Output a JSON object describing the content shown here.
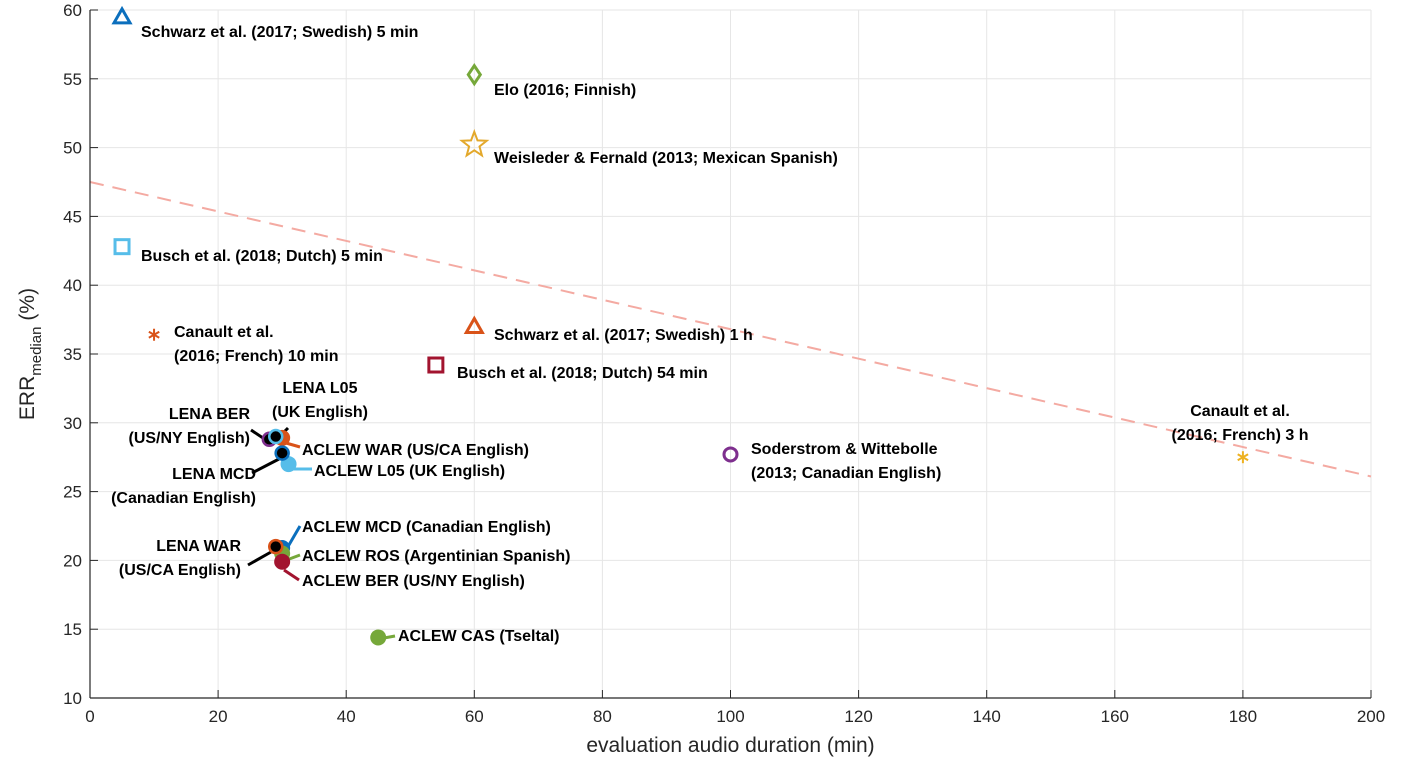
{
  "chart_data": {
    "type": "scatter",
    "xlabel": "evaluation audio duration (min)",
    "ylabel_main": "ERR",
    "ylabel_sub": "median",
    "ylabel_unit": "(%)",
    "xlim": [
      0,
      200
    ],
    "ylim": [
      10,
      60
    ],
    "xticks": [
      0,
      20,
      40,
      60,
      80,
      100,
      120,
      140,
      160,
      180,
      200
    ],
    "yticks": [
      10,
      15,
      20,
      25,
      30,
      35,
      40,
      45,
      50,
      55,
      60
    ],
    "grid": true,
    "trend_line": {
      "style": "dashed",
      "color": "#f4aaa2",
      "x": [
        0,
        200
      ],
      "y": [
        47.5,
        26.1
      ]
    },
    "points": [
      {
        "x": 5,
        "y": 59.5,
        "marker": "triangle",
        "color": "#0b6fbd",
        "label": [
          "Schwarz et al. (2017; Swedish) 5 min"
        ]
      },
      {
        "x": 60,
        "y": 55.3,
        "marker": "diamond",
        "color": "#76a83a",
        "label": [
          "Elo (2016; Finnish)"
        ]
      },
      {
        "x": 60,
        "y": 50.2,
        "marker": "star",
        "color": "#e3a82b",
        "label": [
          "Weisleder & Fernald (2013; Mexican Spanish)"
        ]
      },
      {
        "x": 5,
        "y": 42.8,
        "marker": "square",
        "color": "#56bde9",
        "label": [
          "Busch et al. (2018; Dutch) 5 min"
        ]
      },
      {
        "x": 10,
        "y": 36.4,
        "marker": "asterisk",
        "color": "#d95319",
        "label": [
          "Canault et al.",
          "(2016; French) 10 min"
        ]
      },
      {
        "x": 60,
        "y": 37.0,
        "marker": "triangle",
        "color": "#d95319",
        "label": [
          "Schwarz et al. (2017; Swedish) 1 h"
        ]
      },
      {
        "x": 54,
        "y": 34.2,
        "marker": "square",
        "color": "#a2142f",
        "label": [
          "Busch et al. (2018; Dutch) 54 min"
        ]
      },
      {
        "x": 100,
        "y": 27.7,
        "marker": "circle-open",
        "color": "#7e2f8e",
        "label": [
          "Soderstrom & Wittebolle",
          "(2013; Canadian English)"
        ]
      },
      {
        "x": 180,
        "y": 27.5,
        "marker": "asterisk",
        "color": "#edb120",
        "label": [
          "Canault et al.",
          "(2016; French) 3 h"
        ]
      },
      {
        "x": 30,
        "y": 28.9,
        "marker": "circle-filled",
        "color": "#d95319",
        "label": [
          "ACLEW WAR (US/CA English)"
        ]
      },
      {
        "x": 31,
        "y": 27.0,
        "marker": "circle-filled",
        "color": "#56bde9",
        "label": [
          "ACLEW L05 (UK English)"
        ]
      },
      {
        "x": 28,
        "y": 28.8,
        "marker": "circle-ring",
        "color": "#7e2f8e",
        "label": [
          "LENA BER",
          "(US/NY English)"
        ]
      },
      {
        "x": 29,
        "y": 29.0,
        "marker": "circle-ring",
        "color": "#56bde9",
        "label": [
          "LENA L05",
          "(UK English)"
        ]
      },
      {
        "x": 30,
        "y": 27.8,
        "marker": "circle-ring",
        "color": "#0b6fbd",
        "label": [
          "LENA MCD",
          "(Canadian English)"
        ]
      },
      {
        "x": 30,
        "y": 20.9,
        "marker": "circle-filled",
        "color": "#0b6fbd",
        "label": [
          "ACLEW MCD (Canadian English)"
        ]
      },
      {
        "x": 30,
        "y": 20.5,
        "marker": "circle-filled",
        "color": "#76a83a",
        "label": [
          "ACLEW ROS (Argentinian Spanish)"
        ]
      },
      {
        "x": 30,
        "y": 19.9,
        "marker": "circle-filled",
        "color": "#a2142f",
        "label": [
          "ACLEW BER (US/NY English)"
        ]
      },
      {
        "x": 29,
        "y": 21.0,
        "marker": "circle-ring",
        "color": "#d95319",
        "label": [
          "LENA WAR",
          "(US/CA English)"
        ]
      },
      {
        "x": 45,
        "y": 14.4,
        "marker": "circle-filled",
        "color": "#76a83a",
        "label": [
          "ACLEW CAS (Tseltal)"
        ]
      }
    ]
  }
}
